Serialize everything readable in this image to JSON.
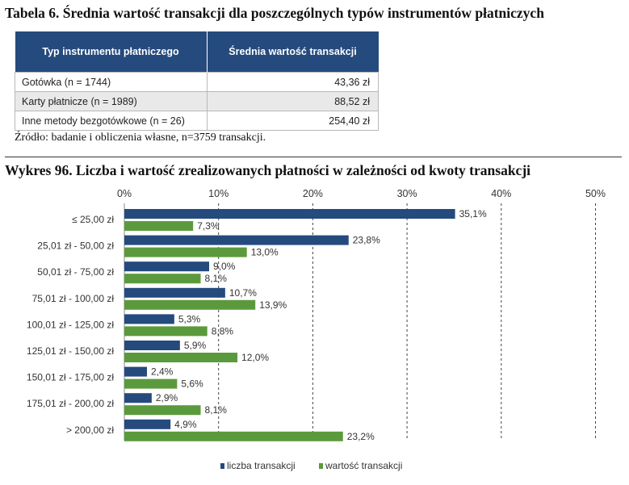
{
  "table": {
    "title": "Tabela 6. Średnia wartość transakcji dla poszczególnych typów instrumentów płatniczych",
    "headers": [
      "Typ instrumentu płatniczego",
      "Średnia wartość transakcji"
    ],
    "rows": [
      [
        "Gotówka (n = 1744)",
        "43,36 zł"
      ],
      [
        "Karty płatnicze (n = 1989)",
        "88,52 zł"
      ],
      [
        "Inne metody bezgotówkowe (n = 26)",
        "254,40 zł"
      ]
    ],
    "header_color": "#254a7d",
    "source": "Źródło: badanie i obliczenia własne, n=3759 transakcji."
  },
  "chart_data": {
    "type": "bar",
    "orientation": "horizontal",
    "title": "Wykres 96. Liczba i wartość zrealizowanych płatności w zależności od kwoty transakcji",
    "categories": [
      "≤ 25,00 zł",
      "25,01 zł - 50,00 zł",
      "50,01 zł - 75,00 zł",
      "75,01 zł - 100,00 zł",
      "100,01 zł - 125,00 zł",
      "125,01 zł - 150,00 zł",
      "150,01 zł - 175,00 zł",
      "175,01 zł - 200,00 zł",
      "> 200,00 zł"
    ],
    "series": [
      {
        "name": "liczba transakcji",
        "color": "#254a7d",
        "values": [
          35.1,
          23.8,
          9.0,
          10.7,
          5.3,
          5.9,
          2.4,
          2.9,
          4.9
        ],
        "labels": [
          "35,1%",
          "23,8%",
          "9,0%",
          "10,7%",
          "5,3%",
          "5,9%",
          "2,4%",
          "2,9%",
          "4,9%"
        ]
      },
      {
        "name": "wartość transakcji",
        "color": "#5b9a3c",
        "values": [
          7.3,
          13.0,
          8.1,
          13.9,
          8.8,
          12.0,
          5.6,
          8.1,
          23.2
        ],
        "labels": [
          "7,3%",
          "13,0%",
          "8,1%",
          "13,9%",
          "8,8%",
          "12,0%",
          "5,6%",
          "8,1%",
          "23,2%"
        ]
      }
    ],
    "xlim": [
      0,
      50
    ],
    "xticks": [
      0,
      10,
      20,
      30,
      40,
      50
    ],
    "xtick_labels": [
      "0%",
      "10%",
      "20%",
      "30%",
      "40%",
      "50%"
    ],
    "axis_position": "top",
    "grid": "vertical dashed",
    "legend_position": "bottom"
  }
}
